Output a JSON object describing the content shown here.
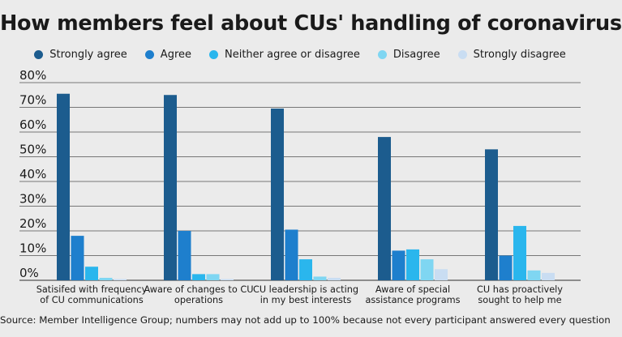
{
  "chart_data": {
    "type": "bar",
    "title": "How members feel about CUs' handling of coronavirus",
    "categories": [
      [
        "Satisifed with frequency",
        "of CU communications"
      ],
      [
        "Aware of changes to CU",
        "operations"
      ],
      [
        "CU leadership is acting",
        "in my best interests"
      ],
      [
        "Aware of special",
        "assistance programs"
      ],
      [
        "CU has proactively",
        "sought to help me"
      ]
    ],
    "series": [
      {
        "name": "Strongly agree",
        "color": "#1c5c8e",
        "values": [
          75.5,
          75,
          69.5,
          58,
          53
        ]
      },
      {
        "name": "Agree",
        "color": "#1e7fcd",
        "values": [
          18,
          20,
          20.5,
          12,
          10
        ]
      },
      {
        "name": "Neither agree or disagree",
        "color": "#2ab6ed",
        "values": [
          5.5,
          2.5,
          8.5,
          12.5,
          22
        ]
      },
      {
        "name": "Disagree",
        "color": "#7fd6f2",
        "values": [
          1,
          2.5,
          1.5,
          8.5,
          4
        ]
      },
      {
        "name": "Strongly disagree",
        "color": "#c9ddf2",
        "values": [
          0.5,
          0.5,
          1,
          4.5,
          3
        ]
      }
    ],
    "ylim": [
      0,
      80
    ],
    "yticks": [
      0,
      10,
      20,
      30,
      40,
      50,
      60,
      70,
      80
    ],
    "ytick_labels": [
      "0%",
      "10%",
      "20%",
      "30%",
      "40%",
      "50%",
      "60%",
      "70%",
      "80%"
    ],
    "grid": true,
    "legend_position": "top"
  },
  "source_note": "Source: Member Intelligence Group; numbers may not add up to 100% because not every participant answered every question"
}
